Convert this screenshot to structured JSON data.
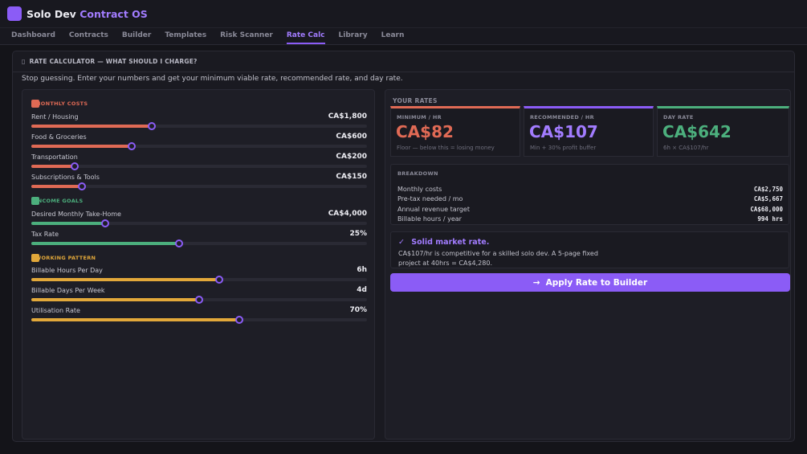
{
  "app": {
    "name": "Solo Dev",
    "name_accent": "Contract OS",
    "accent_color": "#8b5cf6"
  },
  "nav": {
    "tabs": [
      {
        "label": "Dashboard"
      },
      {
        "label": "Contracts"
      },
      {
        "label": "Builder"
      },
      {
        "label": "Templates"
      },
      {
        "label": "Risk Scanner"
      },
      {
        "label": "Rate Calc",
        "active": true
      },
      {
        "label": "Library"
      },
      {
        "label": "Learn"
      }
    ]
  },
  "panel": {
    "icon": "calculator-icon",
    "title": "RATE CALCULATOR — WHAT SHOULD I CHARGE?",
    "intro": "Stop guessing. Enter your numbers and get your minimum viable rate, recommended rate, and day rate."
  },
  "inputs": {
    "groups": [
      {
        "title": "MONTHLY COSTS",
        "color": "#e06a55",
        "sliders": [
          {
            "label": "Rent / Housing",
            "value": "CA$1,800",
            "level": 0.36
          },
          {
            "label": "Food & Groceries",
            "value": "CA$600",
            "level": 0.3
          },
          {
            "label": "Transportation",
            "value": "CA$200",
            "level": 0.13
          },
          {
            "label": "Subscriptions & Tools",
            "value": "CA$150",
            "level": 0.15
          }
        ]
      },
      {
        "title": "INCOME GOALS",
        "color": "#4caf7d",
        "sliders": [
          {
            "label": "Desired Monthly Take-Home",
            "value": "CA$4,000",
            "level": 0.22
          },
          {
            "label": "Tax Rate",
            "value": "25%",
            "level": 0.44
          }
        ]
      },
      {
        "title": "WORKING PATTERN",
        "color": "#e2a83a",
        "sliders": [
          {
            "label": "Billable Hours Per Day",
            "value": "6h",
            "level": 0.56
          },
          {
            "label": "Billable Days Per Week",
            "value": "4d",
            "level": 0.5
          },
          {
            "label": "Utilisation Rate",
            "value": "70%",
            "level": 0.62
          }
        ]
      }
    ]
  },
  "results": {
    "section_label": "YOUR RATES",
    "cards": [
      {
        "label": "MINIMUM / HR",
        "value": "CA$82",
        "sub": "Floor — below this = losing money",
        "color": "#e06a55"
      },
      {
        "label": "RECOMMENDED / HR",
        "value": "CA$107",
        "sub": "Min + 30% profit buffer",
        "color": "#8b5cf6"
      },
      {
        "label": "DAY RATE",
        "value": "CA$642",
        "sub": "6h × CA$107/hr",
        "color": "#4caf7d"
      }
    ],
    "breakdown": {
      "title": "BREAKDOWN",
      "rows": [
        {
          "label": "Monthly costs",
          "value": "CA$2,750"
        },
        {
          "label": "Pre-tax needed / mo",
          "value": "CA$5,667"
        },
        {
          "label": "Annual revenue target",
          "value": "CA$68,000"
        },
        {
          "label": "Billable hours / year",
          "value": "994 hrs"
        }
      ]
    },
    "verdict": {
      "check": "✓",
      "title": "Solid market rate.",
      "body": "CA$107/hr is competitive for a skilled solo dev. A 5-page fixed project at 40hrs = CA$4,280."
    },
    "apply_button": {
      "arrow": "→",
      "label": "Apply Rate to Builder"
    }
  }
}
